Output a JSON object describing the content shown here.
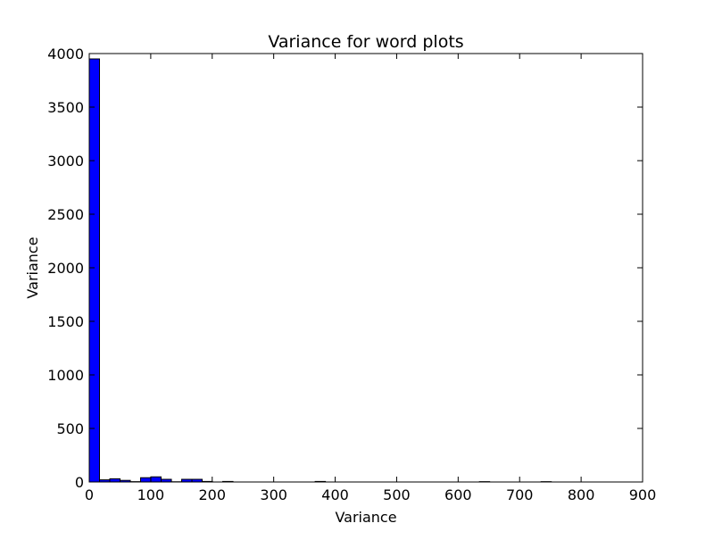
{
  "chart_data": {
    "type": "bar",
    "title": "Variance for word plots",
    "xlabel": "Variance",
    "ylabel": "Variance",
    "xlim": [
      0,
      900
    ],
    "ylim": [
      0,
      4000
    ],
    "xticks": [
      0,
      100,
      200,
      300,
      400,
      500,
      600,
      700,
      800,
      900
    ],
    "yticks": [
      0,
      500,
      1000,
      1500,
      2000,
      2500,
      3000,
      3500,
      4000
    ],
    "bin_width": 16.7,
    "bins": [
      {
        "x": 0,
        "value": 3950
      },
      {
        "x": 16.7,
        "value": 20
      },
      {
        "x": 33.4,
        "value": 30
      },
      {
        "x": 50.1,
        "value": 15
      },
      {
        "x": 66.8,
        "value": 3
      },
      {
        "x": 83.5,
        "value": 40
      },
      {
        "x": 100.2,
        "value": 48
      },
      {
        "x": 116.9,
        "value": 25
      },
      {
        "x": 133.6,
        "value": 2
      },
      {
        "x": 150.3,
        "value": 25
      },
      {
        "x": 167.0,
        "value": 25
      },
      {
        "x": 183.7,
        "value": 5
      },
      {
        "x": 217.1,
        "value": 5
      },
      {
        "x": 367.4,
        "value": 5
      },
      {
        "x": 634.6,
        "value": 3
      },
      {
        "x": 734.8,
        "value": 3
      }
    ],
    "grid": false,
    "legend": "none",
    "bar_color": "#0000ff",
    "edge_color": "#000000"
  }
}
